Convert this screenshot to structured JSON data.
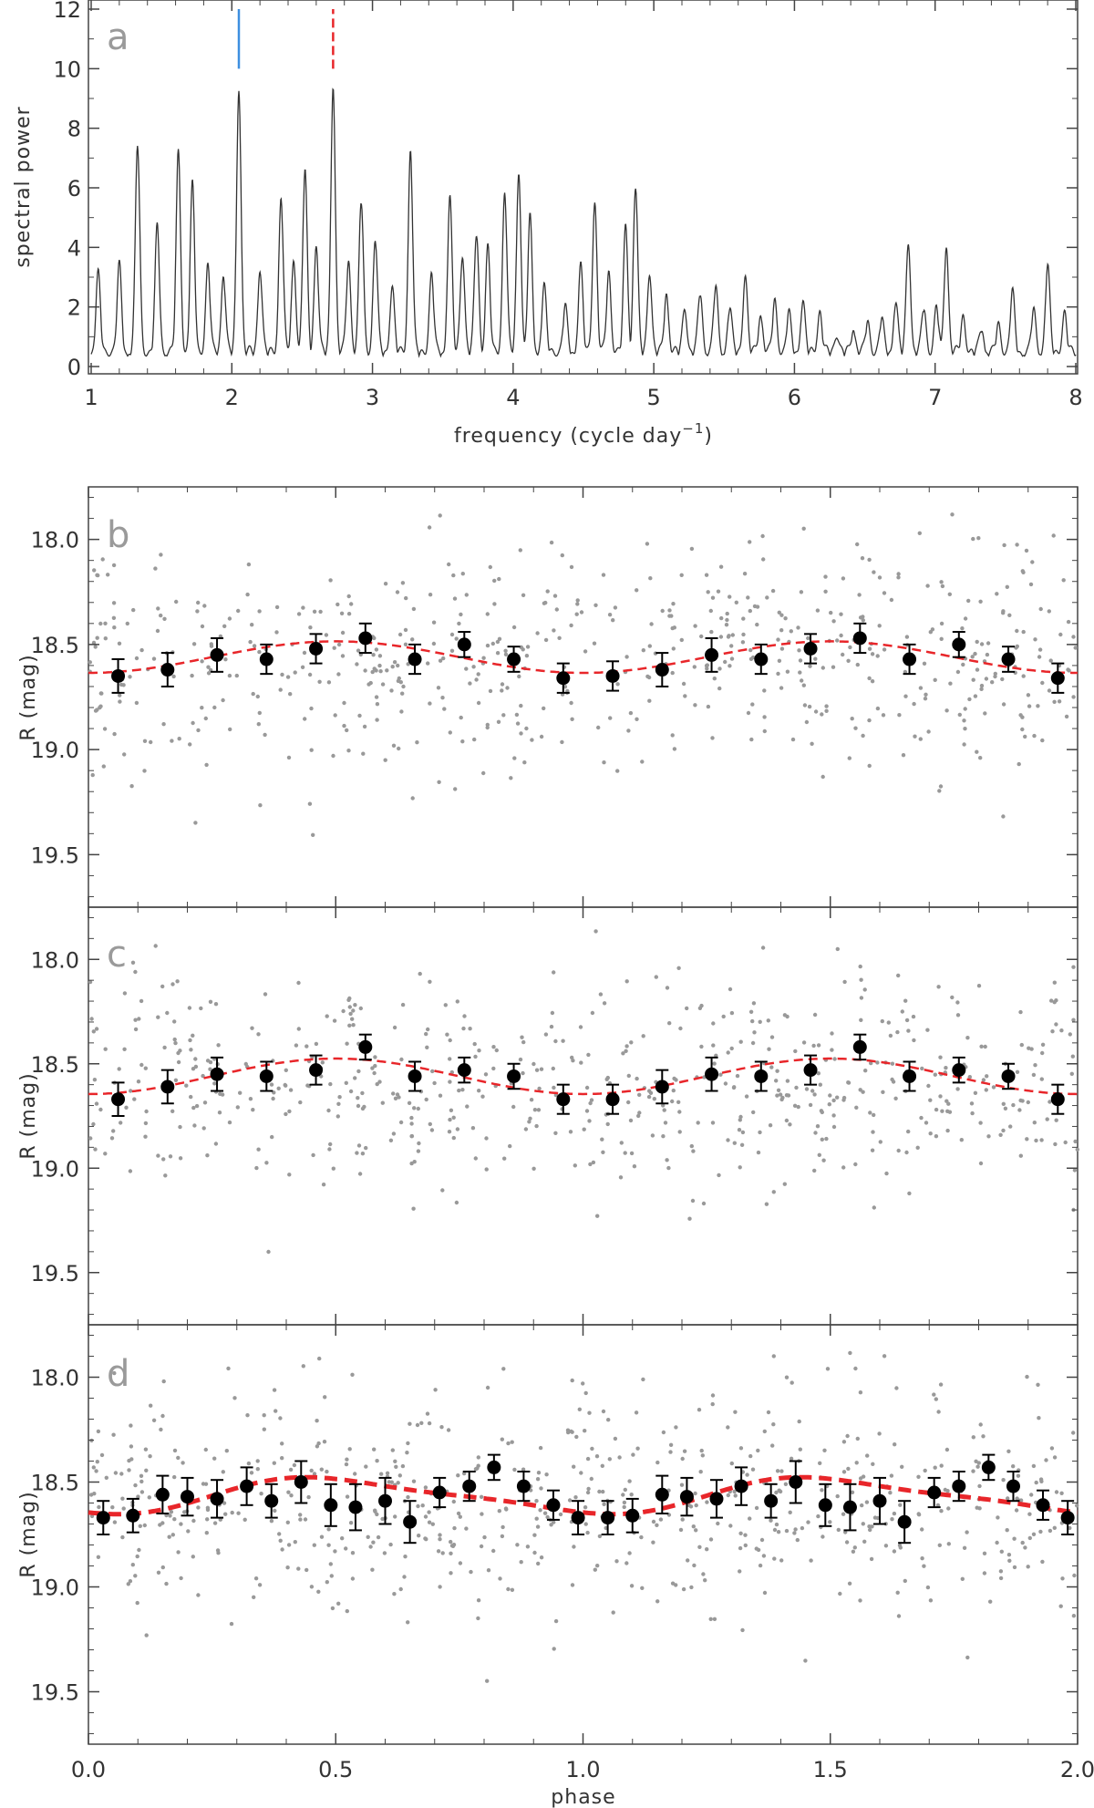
{
  "chart_data": [
    {
      "panel": "a",
      "type": "line",
      "xlabel": "frequency (cycle day",
      "xlabel_sup": "−1",
      "xlabel_close": ")",
      "ylabel": "spectral power",
      "xlim": [
        1,
        8
      ],
      "ylim": [
        0,
        12
      ],
      "xticks": [
        "1",
        "2",
        "3",
        "4",
        "5",
        "6",
        "7",
        "8"
      ],
      "yticks": [
        "0",
        "2",
        "4",
        "6",
        "8",
        "10",
        "12"
      ],
      "marker_lines": [
        {
          "x": 2.05,
          "y_from": 10,
          "y_to": 12,
          "color": "#3d8fe0",
          "style": "solid"
        },
        {
          "x": 2.72,
          "y_from": 10,
          "y_to": 12,
          "color": "#e8262a",
          "style": "dashed"
        }
      ],
      "peaks": [
        {
          "x": 1.05,
          "y": 2.6
        },
        {
          "x": 1.2,
          "y": 2.9
        },
        {
          "x": 1.33,
          "y": 7.0
        },
        {
          "x": 1.47,
          "y": 4.2
        },
        {
          "x": 1.62,
          "y": 6.7
        },
        {
          "x": 1.72,
          "y": 5.6
        },
        {
          "x": 1.83,
          "y": 2.9
        },
        {
          "x": 1.94,
          "y": 2.6
        },
        {
          "x": 2.05,
          "y": 8.9
        },
        {
          "x": 2.2,
          "y": 2.8
        },
        {
          "x": 2.35,
          "y": 5.2
        },
        {
          "x": 2.44,
          "y": 3.1
        },
        {
          "x": 2.52,
          "y": 6.1
        },
        {
          "x": 2.6,
          "y": 3.6
        },
        {
          "x": 2.72,
          "y": 9.0
        },
        {
          "x": 2.83,
          "y": 3.1
        },
        {
          "x": 2.92,
          "y": 5.1
        },
        {
          "x": 3.02,
          "y": 3.8
        },
        {
          "x": 3.14,
          "y": 2.2
        },
        {
          "x": 3.27,
          "y": 6.8
        },
        {
          "x": 3.42,
          "y": 2.6
        },
        {
          "x": 3.55,
          "y": 5.2
        },
        {
          "x": 3.64,
          "y": 3.3
        },
        {
          "x": 3.74,
          "y": 4.0
        },
        {
          "x": 3.82,
          "y": 3.5
        },
        {
          "x": 3.94,
          "y": 5.4
        },
        {
          "x": 4.04,
          "y": 6.1
        },
        {
          "x": 4.12,
          "y": 4.5
        },
        {
          "x": 4.22,
          "y": 2.2
        },
        {
          "x": 4.37,
          "y": 1.5
        },
        {
          "x": 4.48,
          "y": 2.9
        },
        {
          "x": 4.58,
          "y": 5.1
        },
        {
          "x": 4.68,
          "y": 2.7
        },
        {
          "x": 4.8,
          "y": 4.2
        },
        {
          "x": 4.87,
          "y": 5.6
        },
        {
          "x": 4.97,
          "y": 2.7
        },
        {
          "x": 5.09,
          "y": 2.0
        },
        {
          "x": 5.22,
          "y": 1.5
        },
        {
          "x": 5.33,
          "y": 2.0
        },
        {
          "x": 5.44,
          "y": 2.2
        },
        {
          "x": 5.54,
          "y": 1.5
        },
        {
          "x": 5.65,
          "y": 2.6
        },
        {
          "x": 5.76,
          "y": 1.3
        },
        {
          "x": 5.86,
          "y": 1.7
        },
        {
          "x": 5.96,
          "y": 1.3
        },
        {
          "x": 6.06,
          "y": 1.7
        },
        {
          "x": 6.18,
          "y": 1.4
        },
        {
          "x": 6.3,
          "y": 0.6
        },
        {
          "x": 6.42,
          "y": 0.8
        },
        {
          "x": 6.52,
          "y": 1.0
        },
        {
          "x": 6.62,
          "y": 1.1
        },
        {
          "x": 6.72,
          "y": 1.7
        },
        {
          "x": 6.81,
          "y": 3.7
        },
        {
          "x": 6.92,
          "y": 1.5
        },
        {
          "x": 7.01,
          "y": 1.5
        },
        {
          "x": 7.08,
          "y": 3.6
        },
        {
          "x": 7.2,
          "y": 1.2
        },
        {
          "x": 7.33,
          "y": 0.8
        },
        {
          "x": 7.45,
          "y": 0.9
        },
        {
          "x": 7.55,
          "y": 2.0
        },
        {
          "x": 7.7,
          "y": 1.4
        },
        {
          "x": 7.8,
          "y": 2.9
        },
        {
          "x": 7.92,
          "y": 1.3
        }
      ]
    },
    {
      "panel": "b",
      "type": "scatter",
      "ylabel": "R (mag)",
      "xlim": [
        0,
        2
      ],
      "ylim": [
        19.75,
        17.75
      ],
      "yticks": [
        "18.0",
        "18.5",
        "19.0",
        "19.5"
      ],
      "scatter_center": 18.57,
      "scatter_spread": 0.62,
      "scatter_count": 600,
      "model": {
        "mean": 18.56,
        "amplitude": 0.075,
        "periods_per_unit": 1,
        "phase_offset": 0.3,
        "color": "#e8262a"
      },
      "binned_points": [
        {
          "x": 0.06,
          "y": 18.65,
          "err": 0.08
        },
        {
          "x": 0.16,
          "y": 18.62,
          "err": 0.08
        },
        {
          "x": 0.26,
          "y": 18.55,
          "err": 0.08
        },
        {
          "x": 0.36,
          "y": 18.57,
          "err": 0.07
        },
        {
          "x": 0.46,
          "y": 18.52,
          "err": 0.07
        },
        {
          "x": 0.56,
          "y": 18.47,
          "err": 0.07
        },
        {
          "x": 0.66,
          "y": 18.57,
          "err": 0.07
        },
        {
          "x": 0.76,
          "y": 18.5,
          "err": 0.06
        },
        {
          "x": 0.86,
          "y": 18.57,
          "err": 0.06
        },
        {
          "x": 0.96,
          "y": 18.66,
          "err": 0.07
        },
        {
          "x": 1.06,
          "y": 18.65,
          "err": 0.07
        },
        {
          "x": 1.16,
          "y": 18.62,
          "err": 0.08
        },
        {
          "x": 1.26,
          "y": 18.55,
          "err": 0.08
        },
        {
          "x": 1.36,
          "y": 18.57,
          "err": 0.07
        },
        {
          "x": 1.46,
          "y": 18.52,
          "err": 0.07
        },
        {
          "x": 1.56,
          "y": 18.47,
          "err": 0.07
        },
        {
          "x": 1.66,
          "y": 18.57,
          "err": 0.07
        },
        {
          "x": 1.76,
          "y": 18.5,
          "err": 0.06
        },
        {
          "x": 1.86,
          "y": 18.57,
          "err": 0.06
        },
        {
          "x": 1.96,
          "y": 18.66,
          "err": 0.07
        }
      ]
    },
    {
      "panel": "c",
      "type": "scatter",
      "ylabel": "R (mag)",
      "xlim": [
        0,
        2
      ],
      "ylim": [
        19.75,
        17.75
      ],
      "yticks": [
        "18.0",
        "18.5",
        "19.0",
        "19.5"
      ],
      "scatter_center": 18.58,
      "scatter_spread": 0.62,
      "scatter_count": 600,
      "model": {
        "mean": 18.56,
        "amplitude": 0.085,
        "periods_per_unit": 1,
        "phase_offset": 0.3,
        "color": "#e8262a"
      },
      "binned_points": [
        {
          "x": 0.06,
          "y": 18.67,
          "err": 0.08
        },
        {
          "x": 0.16,
          "y": 18.61,
          "err": 0.08
        },
        {
          "x": 0.26,
          "y": 18.55,
          "err": 0.08
        },
        {
          "x": 0.36,
          "y": 18.56,
          "err": 0.07
        },
        {
          "x": 0.46,
          "y": 18.53,
          "err": 0.07
        },
        {
          "x": 0.56,
          "y": 18.42,
          "err": 0.06
        },
        {
          "x": 0.66,
          "y": 18.56,
          "err": 0.07
        },
        {
          "x": 0.76,
          "y": 18.53,
          "err": 0.06
        },
        {
          "x": 0.86,
          "y": 18.56,
          "err": 0.06
        },
        {
          "x": 0.96,
          "y": 18.67,
          "err": 0.07
        },
        {
          "x": 1.06,
          "y": 18.67,
          "err": 0.07
        },
        {
          "x": 1.16,
          "y": 18.61,
          "err": 0.08
        },
        {
          "x": 1.26,
          "y": 18.55,
          "err": 0.08
        },
        {
          "x": 1.36,
          "y": 18.56,
          "err": 0.07
        },
        {
          "x": 1.46,
          "y": 18.53,
          "err": 0.07
        },
        {
          "x": 1.56,
          "y": 18.42,
          "err": 0.06
        },
        {
          "x": 1.66,
          "y": 18.56,
          "err": 0.07
        },
        {
          "x": 1.76,
          "y": 18.53,
          "err": 0.06
        },
        {
          "x": 1.86,
          "y": 18.56,
          "err": 0.06
        },
        {
          "x": 1.96,
          "y": 18.67,
          "err": 0.07
        }
      ]
    },
    {
      "panel": "d",
      "type": "scatter",
      "ylabel": "R (mag)",
      "xlabel": "phase",
      "xlim": [
        0,
        2
      ],
      "ylim": [
        19.75,
        17.75
      ],
      "xticks": [
        "0.0",
        "0.5",
        "1.0",
        "1.5",
        "2.0"
      ],
      "yticks": [
        "18.0",
        "18.5",
        "19.0",
        "19.5"
      ],
      "scatter_center": 18.58,
      "scatter_spread": 0.62,
      "scatter_count": 650,
      "model": {
        "mean": 18.565,
        "amplitude": 0.08,
        "periods_per_unit": 1,
        "phase_offset": 0.3,
        "second_amp": 0.02,
        "color": "#e8262a"
      },
      "binned_points": [
        {
          "x": 0.03,
          "y": 18.67,
          "err": 0.08
        },
        {
          "x": 0.09,
          "y": 18.66,
          "err": 0.08
        },
        {
          "x": 0.15,
          "y": 18.56,
          "err": 0.09
        },
        {
          "x": 0.2,
          "y": 18.57,
          "err": 0.09
        },
        {
          "x": 0.26,
          "y": 18.58,
          "err": 0.09
        },
        {
          "x": 0.32,
          "y": 18.52,
          "err": 0.09
        },
        {
          "x": 0.37,
          "y": 18.59,
          "err": 0.08
        },
        {
          "x": 0.43,
          "y": 18.5,
          "err": 0.1
        },
        {
          "x": 0.49,
          "y": 18.61,
          "err": 0.1
        },
        {
          "x": 0.54,
          "y": 18.62,
          "err": 0.11
        },
        {
          "x": 0.6,
          "y": 18.59,
          "err": 0.11
        },
        {
          "x": 0.65,
          "y": 18.69,
          "err": 0.1
        },
        {
          "x": 0.71,
          "y": 18.55,
          "err": 0.07
        },
        {
          "x": 0.77,
          "y": 18.52,
          "err": 0.07
        },
        {
          "x": 0.82,
          "y": 18.43,
          "err": 0.06
        },
        {
          "x": 0.88,
          "y": 18.52,
          "err": 0.07
        },
        {
          "x": 0.94,
          "y": 18.61,
          "err": 0.07
        },
        {
          "x": 0.99,
          "y": 18.67,
          "err": 0.08
        },
        {
          "x": 1.05,
          "y": 18.67,
          "err": 0.08
        },
        {
          "x": 1.1,
          "y": 18.66,
          "err": 0.08
        },
        {
          "x": 1.16,
          "y": 18.56,
          "err": 0.09
        },
        {
          "x": 1.21,
          "y": 18.57,
          "err": 0.09
        },
        {
          "x": 1.27,
          "y": 18.58,
          "err": 0.09
        },
        {
          "x": 1.32,
          "y": 18.52,
          "err": 0.09
        },
        {
          "x": 1.38,
          "y": 18.59,
          "err": 0.08
        },
        {
          "x": 1.43,
          "y": 18.5,
          "err": 0.1
        },
        {
          "x": 1.49,
          "y": 18.61,
          "err": 0.1
        },
        {
          "x": 1.54,
          "y": 18.62,
          "err": 0.11
        },
        {
          "x": 1.6,
          "y": 18.59,
          "err": 0.11
        },
        {
          "x": 1.65,
          "y": 18.69,
          "err": 0.1
        },
        {
          "x": 1.71,
          "y": 18.55,
          "err": 0.07
        },
        {
          "x": 1.76,
          "y": 18.52,
          "err": 0.07
        },
        {
          "x": 1.82,
          "y": 18.43,
          "err": 0.06
        },
        {
          "x": 1.87,
          "y": 18.52,
          "err": 0.07
        },
        {
          "x": 1.93,
          "y": 18.61,
          "err": 0.07
        },
        {
          "x": 1.98,
          "y": 18.67,
          "err": 0.08
        }
      ]
    }
  ]
}
